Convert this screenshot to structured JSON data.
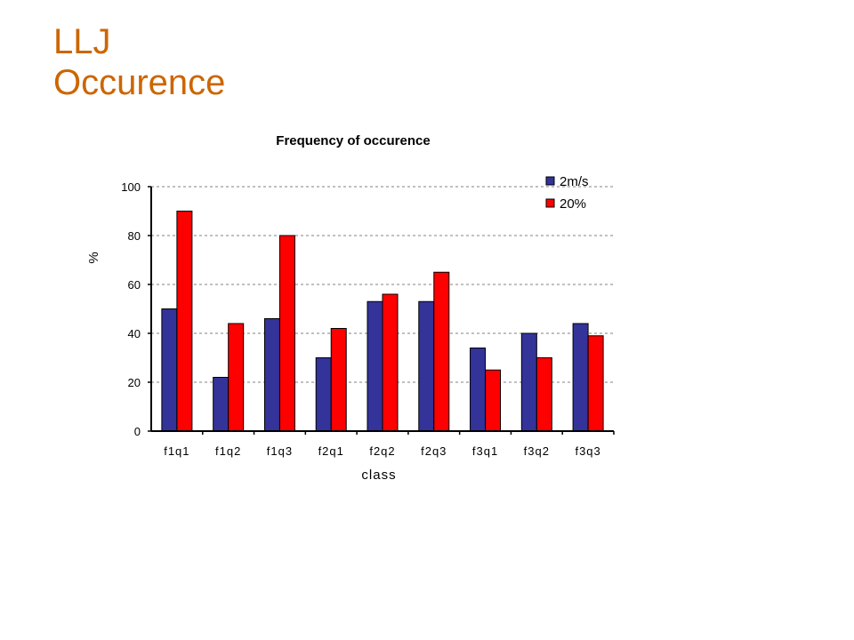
{
  "slide": {
    "title_line1": "LLJ",
    "title_line2": "Occurence",
    "title_color": "#cc6600"
  },
  "chart_data": {
    "type": "bar",
    "title": "Frequency of occurence",
    "xlabel": "class",
    "ylabel": "%",
    "categories": [
      "f1q1",
      "f1q2",
      "f1q3",
      "f2q1",
      "f2q2",
      "f2q3",
      "f3q1",
      "f3q2",
      "f3q3"
    ],
    "series": [
      {
        "name": "2m/s",
        "color": "#333399",
        "values": [
          50,
          22,
          46,
          30,
          53,
          53,
          34,
          40,
          44
        ]
      },
      {
        "name": "20%",
        "color": "#ff0000",
        "values": [
          90,
          44,
          80,
          42,
          56,
          65,
          25,
          30,
          39
        ]
      }
    ],
    "ylim": [
      0,
      100
    ],
    "yticks": [
      0,
      20,
      40,
      60,
      80,
      100
    ],
    "grid": true,
    "legend_position": "top-right"
  }
}
